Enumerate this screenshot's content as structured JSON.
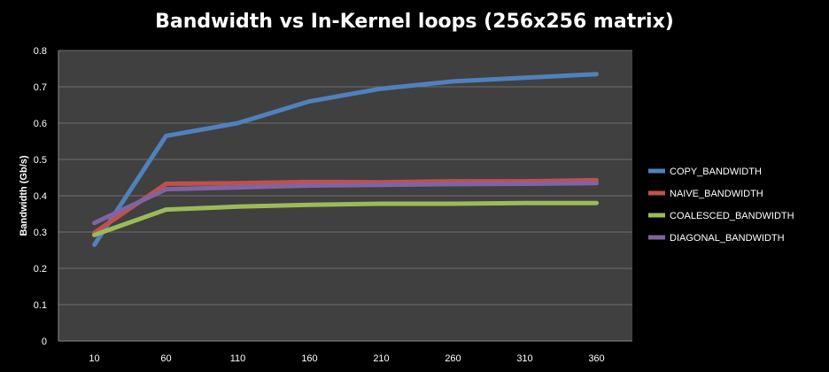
{
  "chart_data": {
    "type": "line",
    "title": "Bandwidth vs In-Kernel loops (256x256 matrix)",
    "xlabel": "",
    "ylabel": "Bandwidth (Gb/s)",
    "categories": [
      "10",
      "60",
      "110",
      "160",
      "210",
      "260",
      "310",
      "360"
    ],
    "ylim": [
      0,
      0.8
    ],
    "yticks": [
      "0",
      "0.1",
      "0.2",
      "0.3",
      "0.4",
      "0.5",
      "0.6",
      "0.7",
      "0.8"
    ],
    "grid": true,
    "legend_position": "right",
    "background": "#404040",
    "series": [
      {
        "name": "COPY_BANDWIDTH",
        "color": "#4f81bd",
        "values": [
          0.265,
          0.565,
          0.6,
          0.66,
          0.695,
          0.715,
          0.725,
          0.735
        ]
      },
      {
        "name": "NAIVE_BANDWIDTH",
        "color": "#c0504d",
        "values": [
          0.298,
          0.433,
          0.435,
          0.438,
          0.437,
          0.44,
          0.44,
          0.443
        ]
      },
      {
        "name": "COALESCED_BANDWIDTH",
        "color": "#9bbb59",
        "values": [
          0.292,
          0.362,
          0.37,
          0.375,
          0.378,
          0.378,
          0.38,
          0.38
        ]
      },
      {
        "name": "DIAGONAL_BANDWIDTH",
        "color": "#8064a2",
        "values": [
          0.325,
          0.418,
          0.423,
          0.428,
          0.43,
          0.432,
          0.433,
          0.435
        ]
      }
    ]
  }
}
